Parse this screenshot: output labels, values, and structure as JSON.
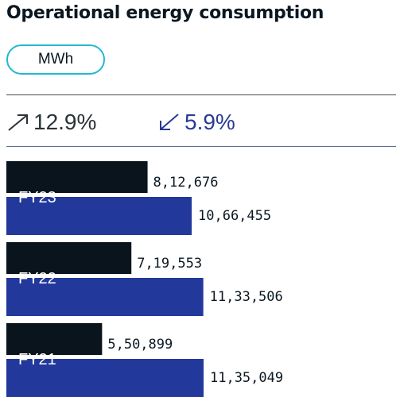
{
  "title": "Operational energy consumption",
  "unit": "MWh",
  "changes": {
    "increase": "12.9%",
    "decrease": "5.9%"
  },
  "colors": {
    "bar_primary": "#09141d",
    "bar_secondary": "#22389a",
    "pill_border": "#23b8cf",
    "decrease_text": "#2a3a94"
  },
  "chart_data": {
    "type": "bar",
    "orientation": "horizontal",
    "categories": [
      "FY23",
      "FY22",
      "FY21"
    ],
    "series": [
      {
        "values": [
          812676,
          719553,
          550899
        ],
        "labels": [
          "8,12,676",
          "7,19,553",
          "5,50,899"
        ]
      },
      {
        "values": [
          1066455,
          1133506,
          1135049
        ],
        "labels": [
          "10,66,455",
          "11,33,506",
          "11,35,049"
        ]
      }
    ]
  }
}
